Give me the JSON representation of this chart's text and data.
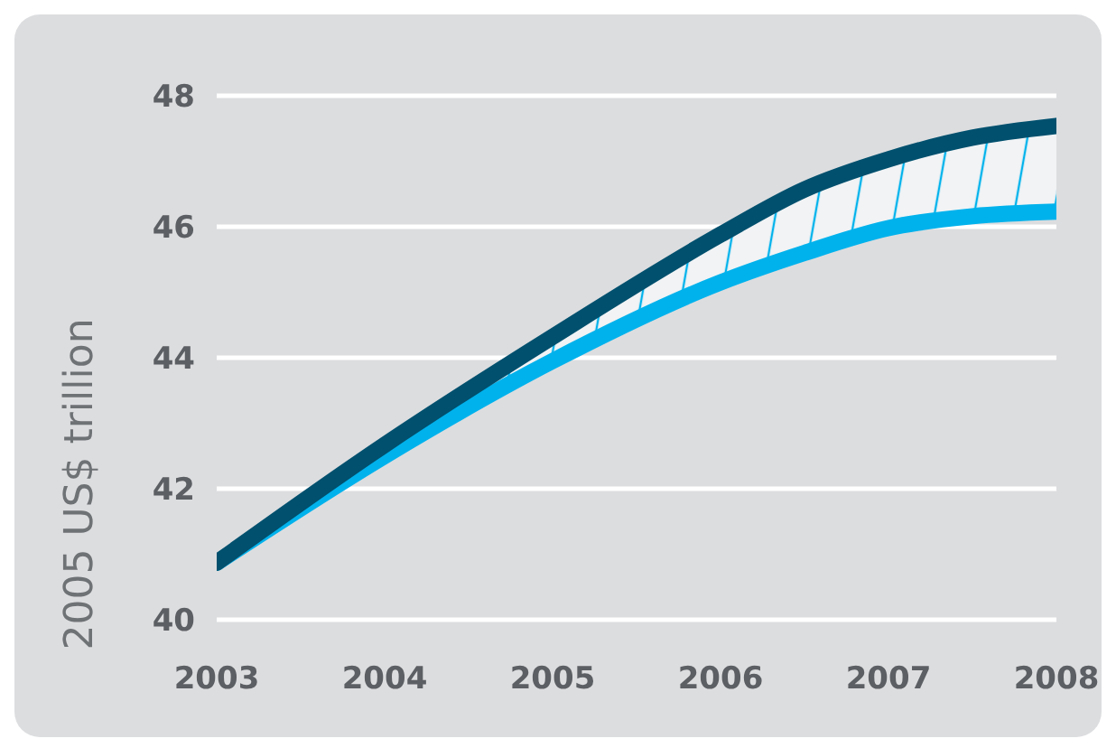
{
  "chart_data": {
    "type": "line",
    "ylabel": "2005 US$ trillion",
    "x": [
      2003,
      2004,
      2005,
      2006,
      2006.5,
      2007,
      2007.5,
      2008
    ],
    "xlim": [
      2003,
      2008
    ],
    "xticks": [
      2003,
      2004,
      2005,
      2006,
      2007,
      2008
    ],
    "ylim": [
      40,
      48
    ],
    "yticks": [
      40,
      42,
      44,
      46,
      48
    ],
    "grid": "y",
    "marker": "none",
    "line_style": "solid",
    "series": [
      {
        "color": "#00b2ec",
        "values": [
          40.87,
          42.5,
          43.95,
          45.15,
          45.6,
          45.98,
          46.16,
          46.23
        ]
      },
      {
        "color": "#00506e",
        "values": [
          40.87,
          42.67,
          44.32,
          45.88,
          46.57,
          47.03,
          47.36,
          47.54
        ],
        "lower": [
          40.87,
          42.5,
          43.95,
          45.15,
          45.6,
          45.98,
          46.16,
          46.23
        ],
        "upper": [
          40.87,
          42.67,
          44.32,
          45.88,
          46.57,
          47.03,
          47.36,
          47.54
        ]
      }
    ]
  }
}
